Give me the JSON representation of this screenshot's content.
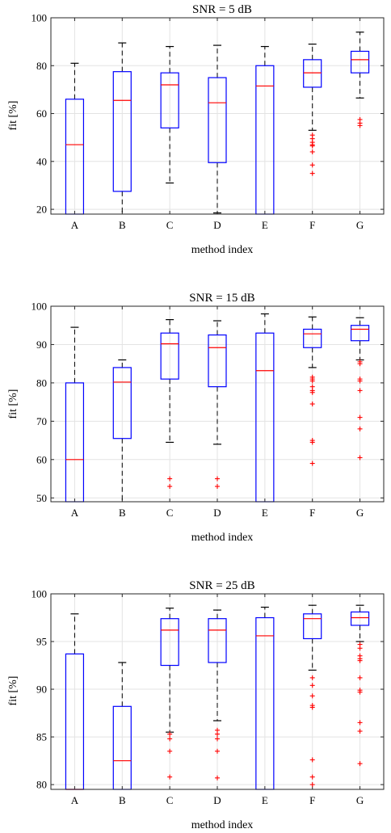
{
  "figure": {
    "width": 484,
    "height": 1031
  },
  "chart_data": [
    {
      "type": "box",
      "title": "SNR = 5 dB",
      "xlabel": "method index",
      "ylabel": "fit [%]",
      "ylim": [
        18,
        100
      ],
      "yticks": [
        20,
        40,
        60,
        80,
        100
      ],
      "grid": true,
      "categories": [
        "A",
        "B",
        "C",
        "D",
        "E",
        "F",
        "G"
      ],
      "boxes": [
        {
          "name": "A",
          "whisker_low": 18,
          "q1": 18,
          "median": 47,
          "q3": 66,
          "whisker_high": 81,
          "outliers": []
        },
        {
          "name": "B",
          "whisker_low": 18,
          "q1": 27.5,
          "median": 65.5,
          "q3": 77.5,
          "whisker_high": 89.5,
          "outliers": []
        },
        {
          "name": "C",
          "whisker_low": 31,
          "q1": 54,
          "median": 72,
          "q3": 77,
          "whisker_high": 88,
          "outliers": []
        },
        {
          "name": "D",
          "whisker_low": 18.5,
          "q1": 39.5,
          "median": 64.5,
          "q3": 75,
          "whisker_high": 88.5,
          "outliers": []
        },
        {
          "name": "E",
          "whisker_low": 18,
          "q1": 18,
          "median": 71.5,
          "q3": 80,
          "whisker_high": 88,
          "outliers": []
        },
        {
          "name": "F",
          "whisker_low": 53,
          "q1": 71,
          "median": 77,
          "q3": 82.5,
          "whisker_high": 89,
          "outliers": [
            51,
            49.5,
            48,
            47,
            46.5,
            44,
            38.5,
            35
          ]
        },
        {
          "name": "G",
          "whisker_low": 66.5,
          "q1": 77,
          "median": 82.5,
          "q3": 86,
          "whisker_high": 94,
          "outliers": [
            57.5,
            56,
            55
          ]
        }
      ]
    },
    {
      "type": "box",
      "title": "SNR = 15 dB",
      "xlabel": "method index",
      "ylabel": "fit [%]",
      "ylim": [
        49,
        100
      ],
      "yticks": [
        50,
        60,
        70,
        80,
        90,
        100
      ],
      "grid": true,
      "categories": [
        "A",
        "B",
        "C",
        "D",
        "E",
        "F",
        "G"
      ],
      "boxes": [
        {
          "name": "A",
          "whisker_low": 49,
          "q1": 49,
          "median": 60,
          "q3": 80,
          "whisker_high": 94.5,
          "outliers": []
        },
        {
          "name": "B",
          "whisker_low": 49,
          "q1": 65.5,
          "median": 80.2,
          "q3": 84,
          "whisker_high": 86,
          "outliers": []
        },
        {
          "name": "C",
          "whisker_low": 64.5,
          "q1": 81,
          "median": 90.2,
          "q3": 93,
          "whisker_high": 96.5,
          "outliers": [
            55,
            53
          ]
        },
        {
          "name": "D",
          "whisker_low": 64,
          "q1": 79,
          "median": 89.2,
          "q3": 92.5,
          "whisker_high": 96.2,
          "outliers": [
            55,
            53
          ]
        },
        {
          "name": "E",
          "whisker_low": 49,
          "q1": 49,
          "median": 83.2,
          "q3": 93,
          "whisker_high": 98,
          "outliers": []
        },
        {
          "name": "F",
          "whisker_low": 84,
          "q1": 89.2,
          "median": 92.8,
          "q3": 94,
          "whisker_high": 97.2,
          "outliers": [
            81.5,
            81,
            80.5,
            79,
            78,
            77.5,
            74.5,
            65,
            64.5,
            59
          ]
        },
        {
          "name": "G",
          "whisker_low": 86,
          "q1": 91,
          "median": 94,
          "q3": 95,
          "whisker_high": 97,
          "outliers": [
            85.5,
            85,
            81,
            80.5,
            78,
            71,
            68,
            60.5
          ]
        }
      ]
    },
    {
      "type": "box",
      "title": "SNR = 25 dB",
      "xlabel": "method index",
      "ylabel": "fit [%]",
      "ylim": [
        79.5,
        100
      ],
      "yticks": [
        80,
        85,
        90,
        95,
        100
      ],
      "grid": true,
      "categories": [
        "A",
        "B",
        "C",
        "D",
        "E",
        "F",
        "G"
      ],
      "boxes": [
        {
          "name": "A",
          "whisker_low": 79.5,
          "q1": 79.5,
          "median": 79.5,
          "q3": 93.7,
          "whisker_high": 97.9,
          "outliers": []
        },
        {
          "name": "B",
          "whisker_low": 79.5,
          "q1": 79.5,
          "median": 82.5,
          "q3": 88.2,
          "whisker_high": 92.8,
          "outliers": []
        },
        {
          "name": "C",
          "whisker_low": 85.5,
          "q1": 92.5,
          "median": 96.2,
          "q3": 97.4,
          "whisker_high": 98.5,
          "outliers": [
            85.3,
            84.8,
            83.5,
            80.8
          ]
        },
        {
          "name": "D",
          "whisker_low": 86.7,
          "q1": 92.8,
          "median": 96.2,
          "q3": 97.4,
          "whisker_high": 98.3,
          "outliers": [
            85.7,
            85.3,
            84.8,
            83.5,
            80.7
          ]
        },
        {
          "name": "E",
          "whisker_low": 79.5,
          "q1": 79.5,
          "median": 95.6,
          "q3": 97.5,
          "whisker_high": 98.6,
          "outliers": []
        },
        {
          "name": "F",
          "whisker_low": 92,
          "q1": 95.3,
          "median": 97.4,
          "q3": 97.9,
          "whisker_high": 98.8,
          "outliers": [
            91.2,
            90.4,
            89.3,
            88.3,
            88.1,
            82.6,
            80.8,
            80
          ]
        },
        {
          "name": "G",
          "whisker_low": 95,
          "q1": 96.7,
          "median": 97.5,
          "q3": 98.1,
          "whisker_high": 98.8,
          "outliers": [
            94.7,
            94.3,
            93.5,
            93.2,
            93,
            91.2,
            89.9,
            89.7,
            86.5,
            85.6,
            82.2
          ]
        }
      ]
    }
  ]
}
